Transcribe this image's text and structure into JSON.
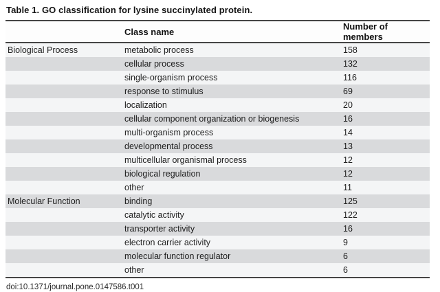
{
  "title": "Table 1. GO classification for lysine succinylated protein.",
  "table": {
    "headers": {
      "category": "",
      "class_name": "Class name",
      "members": "Number of members"
    },
    "rows": [
      {
        "category": "Biological Process",
        "class_name": "metabolic process",
        "members": "158"
      },
      {
        "category": "",
        "class_name": "cellular process",
        "members": "132"
      },
      {
        "category": "",
        "class_name": "single-organism process",
        "members": "116"
      },
      {
        "category": "",
        "class_name": "response to stimulus",
        "members": "69"
      },
      {
        "category": "",
        "class_name": "localization",
        "members": "20"
      },
      {
        "category": "",
        "class_name": "cellular component organization or biogenesis",
        "members": "16"
      },
      {
        "category": "",
        "class_name": "multi-organism process",
        "members": "14"
      },
      {
        "category": "",
        "class_name": "developmental process",
        "members": "13"
      },
      {
        "category": "",
        "class_name": "multicellular organismal process",
        "members": "12"
      },
      {
        "category": "",
        "class_name": "biological regulation",
        "members": "12"
      },
      {
        "category": "",
        "class_name": "other",
        "members": "11"
      },
      {
        "category": "Molecular Function",
        "class_name": "binding",
        "members": "125"
      },
      {
        "category": "",
        "class_name": "catalytic activity",
        "members": "122"
      },
      {
        "category": "",
        "class_name": "transporter activity",
        "members": "16"
      },
      {
        "category": "",
        "class_name": "electron carrier activity",
        "members": "9"
      },
      {
        "category": "",
        "class_name": "molecular function regulator",
        "members": "6"
      },
      {
        "category": "",
        "class_name": "other",
        "members": "6"
      }
    ]
  },
  "footer": {
    "doi": "doi:10.1371/journal.pone.0147586.t001"
  },
  "colors": {
    "row_light": "#f4f5f6",
    "row_shaded": "#d9dadc",
    "rule": "#454545",
    "text": "#212121"
  }
}
